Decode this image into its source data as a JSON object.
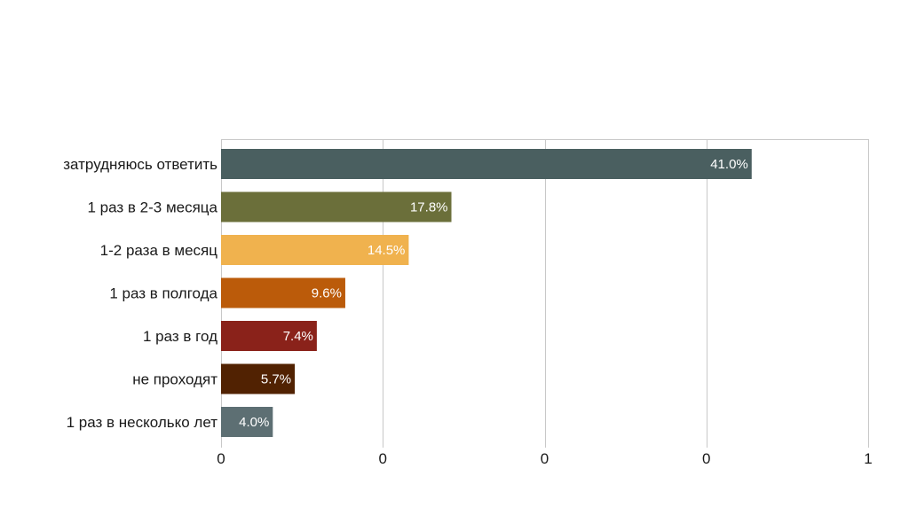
{
  "chart_data": {
    "type": "bar",
    "orientation": "horizontal",
    "title": "",
    "xlabel": "",
    "ylabel": "",
    "grid": true,
    "legend": "none",
    "categories": [
      "затрудняюсь ответить",
      "1 раз в 2-3 месяца",
      "1-2 раза в месяц",
      "1 раз в полгода",
      "1 раз в год",
      "не проходят",
      "1 раз в несколько лет"
    ],
    "values": [
      41.0,
      17.8,
      14.5,
      9.6,
      7.4,
      5.7,
      4.0
    ],
    "data_labels": [
      "41.0%",
      "17.8%",
      "14.5%",
      "9.6%",
      "7.4%",
      "5.7%",
      "4.0%"
    ],
    "colors": [
      "#4a5f60",
      "#6b6f3a",
      "#f0b24e",
      "#bb5b0a",
      "#8a221a",
      "#512202",
      "#5d6f73"
    ],
    "xlim": [
      0,
      50
    ],
    "x_ticks": [
      0,
      12.5,
      25,
      37.5,
      50
    ],
    "x_tick_labels": [
      "0",
      "0",
      "0",
      "0",
      "1"
    ]
  }
}
